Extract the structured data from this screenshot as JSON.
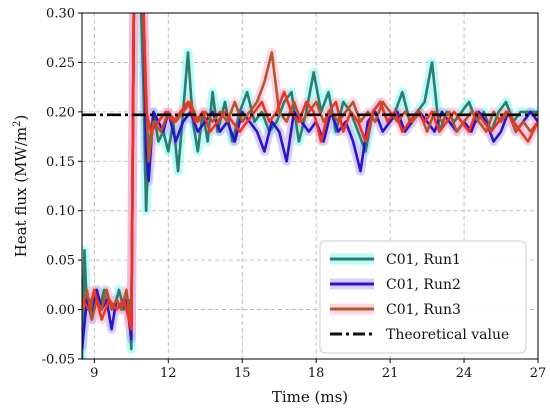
{
  "chart_data": {
    "type": "line",
    "xlabel": "Time (ms)",
    "ylabel_main": "Heat flux (MW/m",
    "ylabel_sup": "2",
    "ylabel_close": ")",
    "xlim": [
      8.5,
      27
    ],
    "ylim": [
      -0.05,
      0.3
    ],
    "xticks": [
      "9",
      "12",
      "15",
      "18",
      "21",
      "24",
      "27"
    ],
    "yticks": [
      "-0.05",
      "0.00",
      "0.05",
      "0.10",
      "0.15",
      "0.20",
      "0.25",
      "0.30"
    ],
    "grid": true,
    "grid_style": "dashed",
    "legend_position": "lower-right",
    "theoretical_value": 0.197,
    "series": [
      {
        "name": "C01, Run1",
        "color": "#2e7d6b",
        "halo": "#7ff5f5",
        "points": [
          [
            8.5,
            -0.05
          ],
          [
            8.6,
            0.06
          ],
          [
            8.7,
            0.0
          ],
          [
            8.8,
            0.01
          ],
          [
            8.9,
            -0.01
          ],
          [
            9.0,
            0.02
          ],
          [
            9.2,
            0.0
          ],
          [
            9.4,
            0.02
          ],
          [
            9.6,
            0.01
          ],
          [
            9.8,
            0.0
          ],
          [
            10.0,
            0.02
          ],
          [
            10.2,
            0.0
          ],
          [
            10.4,
            0.01
          ],
          [
            10.5,
            -0.04
          ],
          [
            10.6,
            0.3
          ],
          [
            10.7,
            0.31
          ],
          [
            10.9,
            0.3
          ],
          [
            11.0,
            0.22
          ],
          [
            11.1,
            0.1
          ],
          [
            11.2,
            0.16
          ],
          [
            11.4,
            0.2
          ],
          [
            11.6,
            0.17
          ],
          [
            11.8,
            0.18
          ],
          [
            12.0,
            0.16
          ],
          [
            12.2,
            0.19
          ],
          [
            12.4,
            0.14
          ],
          [
            12.6,
            0.2
          ],
          [
            12.8,
            0.26
          ],
          [
            13.0,
            0.19
          ],
          [
            13.2,
            0.16
          ],
          [
            13.4,
            0.2
          ],
          [
            13.6,
            0.17
          ],
          [
            13.8,
            0.22
          ],
          [
            14.0,
            0.18
          ],
          [
            14.3,
            0.21
          ],
          [
            14.6,
            0.17
          ],
          [
            14.9,
            0.2
          ],
          [
            15.2,
            0.22
          ],
          [
            15.5,
            0.19
          ],
          [
            15.8,
            0.2
          ],
          [
            16.1,
            0.18
          ],
          [
            16.4,
            0.19
          ],
          [
            16.7,
            0.21
          ],
          [
            17.0,
            0.22
          ],
          [
            17.3,
            0.17
          ],
          [
            17.6,
            0.2
          ],
          [
            17.9,
            0.24
          ],
          [
            18.2,
            0.2
          ],
          [
            18.5,
            0.22
          ],
          [
            18.8,
            0.18
          ],
          [
            19.1,
            0.21
          ],
          [
            19.4,
            0.2
          ],
          [
            19.7,
            0.18
          ],
          [
            20.0,
            0.16
          ],
          [
            20.3,
            0.2
          ],
          [
            20.6,
            0.21
          ],
          [
            20.9,
            0.19
          ],
          [
            21.2,
            0.2
          ],
          [
            21.5,
            0.22
          ],
          [
            21.8,
            0.19
          ],
          [
            22.1,
            0.2
          ],
          [
            22.4,
            0.21
          ],
          [
            22.7,
            0.25
          ],
          [
            23.0,
            0.18
          ],
          [
            23.3,
            0.2
          ],
          [
            23.6,
            0.19
          ],
          [
            23.9,
            0.2
          ],
          [
            24.2,
            0.21
          ],
          [
            24.5,
            0.19
          ],
          [
            24.8,
            0.2
          ],
          [
            25.1,
            0.18
          ],
          [
            25.4,
            0.2
          ],
          [
            25.7,
            0.21
          ],
          [
            26.0,
            0.19
          ],
          [
            26.3,
            0.2
          ],
          [
            26.6,
            0.2
          ],
          [
            27.0,
            0.2
          ]
        ]
      },
      {
        "name": "C01, Run2",
        "color": "#2a14c8",
        "halo": "#b7a8ff",
        "points": [
          [
            8.5,
            -0.04
          ],
          [
            8.7,
            0.01
          ],
          [
            8.9,
            -0.01
          ],
          [
            9.1,
            0.02
          ],
          [
            9.3,
            0.0
          ],
          [
            9.5,
            0.01
          ],
          [
            9.7,
            -0.02
          ],
          [
            9.9,
            0.01
          ],
          [
            10.1,
            0.0
          ],
          [
            10.3,
            0.01
          ],
          [
            10.5,
            -0.03
          ],
          [
            10.6,
            0.3
          ],
          [
            10.8,
            0.31
          ],
          [
            11.0,
            0.3
          ],
          [
            11.1,
            0.16
          ],
          [
            11.2,
            0.13
          ],
          [
            11.4,
            0.2
          ],
          [
            11.6,
            0.19
          ],
          [
            11.8,
            0.18
          ],
          [
            12.0,
            0.2
          ],
          [
            12.3,
            0.17
          ],
          [
            12.6,
            0.19
          ],
          [
            12.9,
            0.2
          ],
          [
            13.2,
            0.18
          ],
          [
            13.5,
            0.19
          ],
          [
            13.8,
            0.2
          ],
          [
            14.1,
            0.18
          ],
          [
            14.4,
            0.19
          ],
          [
            14.7,
            0.17
          ],
          [
            15.0,
            0.2
          ],
          [
            15.3,
            0.19
          ],
          [
            15.6,
            0.18
          ],
          [
            15.9,
            0.16
          ],
          [
            16.2,
            0.19
          ],
          [
            16.5,
            0.18
          ],
          [
            16.8,
            0.15
          ],
          [
            17.1,
            0.2
          ],
          [
            17.4,
            0.19
          ],
          [
            17.7,
            0.18
          ],
          [
            18.0,
            0.19
          ],
          [
            18.3,
            0.17
          ],
          [
            18.6,
            0.2
          ],
          [
            18.9,
            0.18
          ],
          [
            19.2,
            0.19
          ],
          [
            19.5,
            0.17
          ],
          [
            19.8,
            0.14
          ],
          [
            20.1,
            0.19
          ],
          [
            20.4,
            0.2
          ],
          [
            20.7,
            0.18
          ],
          [
            21.0,
            0.19
          ],
          [
            21.3,
            0.2
          ],
          [
            21.6,
            0.18
          ],
          [
            21.9,
            0.19
          ],
          [
            22.2,
            0.2
          ],
          [
            22.5,
            0.19
          ],
          [
            22.8,
            0.18
          ],
          [
            23.1,
            0.2
          ],
          [
            23.4,
            0.19
          ],
          [
            23.7,
            0.18
          ],
          [
            24.0,
            0.19
          ],
          [
            24.3,
            0.18
          ],
          [
            24.6,
            0.2
          ],
          [
            24.9,
            0.19
          ],
          [
            25.2,
            0.17
          ],
          [
            25.5,
            0.18
          ],
          [
            25.8,
            0.2
          ],
          [
            26.1,
            0.18
          ],
          [
            26.4,
            0.19
          ],
          [
            26.7,
            0.2
          ],
          [
            27.0,
            0.19
          ]
        ]
      },
      {
        "name": "C01, Run3",
        "color": "#b0582b",
        "halo": "#ffb6d2",
        "points": [
          [
            8.5,
            0.0
          ],
          [
            8.7,
            0.02
          ],
          [
            8.9,
            -0.01
          ],
          [
            9.1,
            0.01
          ],
          [
            9.3,
            0.0
          ],
          [
            9.5,
            0.02
          ],
          [
            9.7,
            0.0
          ],
          [
            9.9,
            0.01
          ],
          [
            10.1,
            0.0
          ],
          [
            10.3,
            0.02
          ],
          [
            10.5,
            -0.02
          ],
          [
            10.6,
            0.3
          ],
          [
            10.8,
            0.31
          ],
          [
            11.0,
            0.3
          ],
          [
            11.1,
            0.22
          ],
          [
            11.2,
            0.15
          ],
          [
            11.4,
            0.19
          ],
          [
            11.7,
            0.18
          ],
          [
            12.0,
            0.2
          ],
          [
            12.3,
            0.19
          ],
          [
            12.6,
            0.2
          ],
          [
            12.9,
            0.21
          ],
          [
            13.2,
            0.19
          ],
          [
            13.5,
            0.2
          ],
          [
            13.8,
            0.19
          ],
          [
            14.1,
            0.2
          ],
          [
            14.4,
            0.19
          ],
          [
            14.7,
            0.21
          ],
          [
            15.0,
            0.19
          ],
          [
            15.3,
            0.2
          ],
          [
            15.6,
            0.21
          ],
          [
            15.9,
            0.23
          ],
          [
            16.2,
            0.26
          ],
          [
            16.5,
            0.2
          ],
          [
            16.8,
            0.19
          ],
          [
            17.1,
            0.21
          ],
          [
            17.4,
            0.19
          ],
          [
            17.7,
            0.2
          ],
          [
            18.0,
            0.21
          ],
          [
            18.3,
            0.19
          ],
          [
            18.6,
            0.2
          ],
          [
            18.9,
            0.19
          ],
          [
            19.2,
            0.2
          ],
          [
            19.5,
            0.21
          ],
          [
            19.8,
            0.19
          ],
          [
            20.1,
            0.2
          ],
          [
            20.4,
            0.19
          ],
          [
            20.7,
            0.21
          ],
          [
            21.0,
            0.2
          ],
          [
            21.3,
            0.19
          ],
          [
            21.6,
            0.2
          ],
          [
            21.9,
            0.19
          ],
          [
            22.2,
            0.2
          ],
          [
            22.5,
            0.18
          ],
          [
            22.8,
            0.2
          ],
          [
            23.1,
            0.19
          ],
          [
            23.4,
            0.2
          ],
          [
            23.7,
            0.18
          ],
          [
            24.0,
            0.19
          ],
          [
            24.3,
            0.2
          ],
          [
            24.6,
            0.19
          ],
          [
            24.9,
            0.18
          ],
          [
            25.2,
            0.2
          ],
          [
            25.5,
            0.19
          ],
          [
            25.8,
            0.2
          ],
          [
            26.1,
            0.18
          ],
          [
            26.4,
            0.19
          ],
          [
            26.7,
            0.18
          ],
          [
            27.0,
            0.19
          ]
        ]
      },
      {
        "name": "C01, Run3",
        "color": "#ee3322",
        "halo": "#ffb6d2",
        "legend": false,
        "points": [
          [
            8.5,
            0.01
          ],
          [
            8.8,
            0.0
          ],
          [
            9.0,
            0.02
          ],
          [
            9.3,
            -0.01
          ],
          [
            9.6,
            0.01
          ],
          [
            9.9,
            0.0
          ],
          [
            10.2,
            0.01
          ],
          [
            10.5,
            -0.02
          ],
          [
            10.6,
            0.3
          ],
          [
            10.8,
            0.31
          ],
          [
            11.0,
            0.3
          ],
          [
            11.1,
            0.2
          ],
          [
            11.3,
            0.18
          ],
          [
            11.6,
            0.19
          ],
          [
            11.9,
            0.2
          ],
          [
            12.2,
            0.19
          ],
          [
            12.5,
            0.2
          ],
          [
            12.8,
            0.21
          ],
          [
            13.1,
            0.19
          ],
          [
            13.4,
            0.2
          ],
          [
            13.7,
            0.18
          ],
          [
            14.0,
            0.19
          ],
          [
            14.3,
            0.2
          ],
          [
            14.6,
            0.19
          ],
          [
            14.9,
            0.18
          ],
          [
            15.2,
            0.19
          ],
          [
            15.5,
            0.2
          ],
          [
            15.8,
            0.21
          ],
          [
            16.1,
            0.19
          ],
          [
            16.4,
            0.2
          ],
          [
            16.7,
            0.22
          ],
          [
            17.0,
            0.2
          ],
          [
            17.3,
            0.19
          ],
          [
            17.6,
            0.21
          ],
          [
            17.9,
            0.2
          ],
          [
            18.2,
            0.17
          ],
          [
            18.5,
            0.2
          ],
          [
            18.8,
            0.21
          ],
          [
            19.1,
            0.18
          ],
          [
            19.4,
            0.2
          ],
          [
            19.7,
            0.19
          ],
          [
            20.0,
            0.17
          ],
          [
            20.3,
            0.2
          ],
          [
            20.6,
            0.21
          ],
          [
            20.9,
            0.19
          ],
          [
            21.2,
            0.2
          ],
          [
            21.5,
            0.18
          ],
          [
            21.8,
            0.19
          ],
          [
            22.1,
            0.2
          ],
          [
            22.4,
            0.19
          ],
          [
            22.7,
            0.2
          ],
          [
            23.0,
            0.18
          ],
          [
            23.3,
            0.19
          ],
          [
            23.6,
            0.2
          ],
          [
            23.9,
            0.19
          ],
          [
            24.2,
            0.18
          ],
          [
            24.5,
            0.2
          ],
          [
            24.8,
            0.19
          ],
          [
            25.1,
            0.18
          ],
          [
            25.4,
            0.19
          ],
          [
            25.7,
            0.2
          ],
          [
            26.0,
            0.19
          ],
          [
            26.3,
            0.18
          ],
          [
            26.6,
            0.17
          ],
          [
            27.0,
            0.19
          ]
        ]
      }
    ],
    "legend_entries": [
      {
        "label": "C01, Run1",
        "color": "#2e7d6b",
        "halo": "#7ff5f5",
        "style": "solid"
      },
      {
        "label": "C01, Run2",
        "color": "#2a14c8",
        "halo": "#b7a8ff",
        "style": "solid"
      },
      {
        "label": "C01, Run3",
        "color": "#b0582b",
        "halo": "#ffb6d2",
        "style": "solid"
      },
      {
        "label": "Theoretical value",
        "color": "#111111",
        "halo": "",
        "style": "dashdot"
      }
    ]
  }
}
